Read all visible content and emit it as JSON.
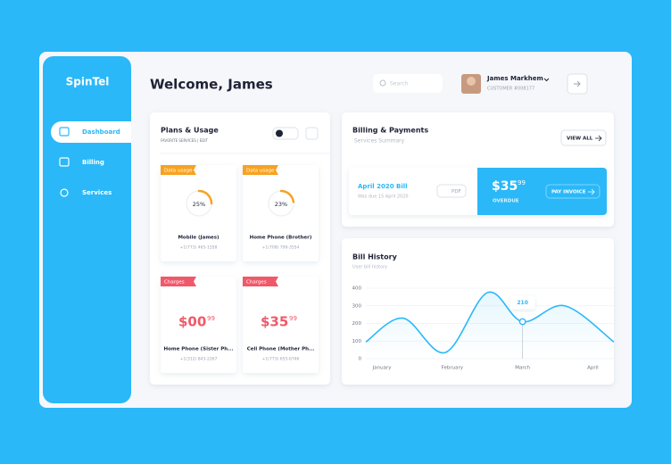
{
  "brand": "SpinTel",
  "nav": [
    "Dashboard",
    "Billing",
    "Services"
  ],
  "header": {
    "title": "Welcome, James",
    "search_placeholder": "Search",
    "user_name": "James Markhem",
    "user_id": "CUSTOMER #008177"
  },
  "plans": {
    "title": "Plans & Usage",
    "subtitle": "FAVORITE SERVICES | EDIT",
    "cards": [
      {
        "tag": "Data usage",
        "tag_color": "#f7a221",
        "usage": 25,
        "usage_label": "25%",
        "name": "Mobile (James)",
        "phone": "+1(773) 465-1558"
      },
      {
        "tag": "Data usage",
        "tag_color": "#f7a221",
        "usage": 23,
        "usage_label": "23%",
        "name": "Home Phone (Brother)",
        "phone": "+1(708) 799-3554"
      },
      {
        "tag": "Charges",
        "tag_color": "#f0596a",
        "amount": "$00",
        "cents": "99",
        "name": "Home Phone (Sister Ph...",
        "phone": "+1(312) 843-2267"
      },
      {
        "tag": "Charges",
        "tag_color": "#f0596a",
        "amount": "$35",
        "cents": "99",
        "name": "Cell Phone (Mother Ph...",
        "phone": "+1(773) 655-6746"
      }
    ]
  },
  "billing": {
    "title": "Billing & Payments",
    "subtitle": "Services Summary",
    "view_all": "VIEW ALL",
    "bill_title": "April 2020 Bill",
    "due": "Was due 15 April 2020",
    "pdf": "PDF",
    "amount": "$35",
    "cents": "99",
    "status": "OVERDUE",
    "pay": "PAY INVOICE"
  },
  "chart_data": {
    "type": "line",
    "title": "Bill History",
    "subtitle": "User bill history",
    "series": [
      {
        "name": "Bill",
        "color": "#2ab8f8",
        "x": [
          -0.23,
          0.3,
          0.9,
          1.5,
          2,
          2.6,
          3.3
        ],
        "values": [
          95,
          230,
          35,
          375,
          210,
          300,
          95
        ],
        "value_labels": [
          null,
          null,
          null,
          null,
          "210",
          null,
          null
        ]
      }
    ],
    "xlim": [
      -0.23,
      3.3
    ],
    "xticks": [
      {
        "value": 0,
        "label": "January"
      },
      {
        "value": 1,
        "label": "February"
      },
      {
        "value": 2,
        "label": "March"
      },
      {
        "value": 3,
        "label": "April"
      }
    ],
    "ylim": [
      0,
      400
    ],
    "yticks": [
      0,
      100,
      200,
      300,
      400
    ],
    "grid": true
  }
}
